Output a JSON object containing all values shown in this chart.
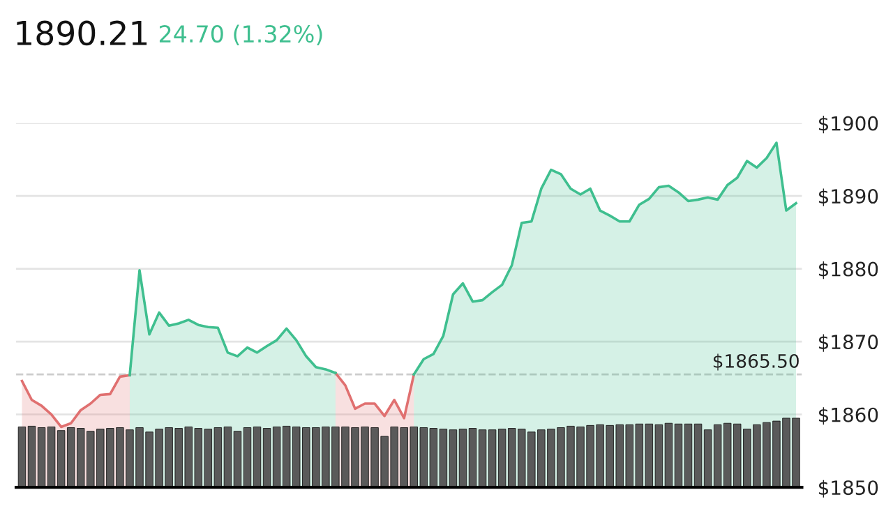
{
  "chart_data": {
    "type": "area",
    "title": "1890.21",
    "subtitle": "24.70 (1.32%)",
    "categories": [
      null,
      null,
      null,
      null,
      null,
      null,
      null,
      null,
      null,
      null,
      null,
      null,
      null,
      null,
      null,
      null,
      null,
      null,
      null,
      null,
      null,
      null,
      null,
      null,
      null,
      null,
      null,
      null,
      null,
      null,
      null,
      null,
      null,
      null,
      null,
      null,
      null,
      null,
      null,
      null,
      null,
      null,
      null,
      null,
      null,
      null,
      null,
      null,
      null,
      null,
      null,
      null,
      null,
      null,
      null,
      null,
      null,
      null,
      null,
      null,
      null,
      null,
      null,
      null,
      null,
      null,
      null,
      null,
      null,
      null,
      null,
      null,
      null,
      null,
      null,
      null,
      null,
      null,
      null,
      null
    ],
    "series": [
      {
        "type": "bar",
        "color": "#5a5a5a",
        "values": [
          1858.3,
          1858.4,
          1858.2,
          1858.3,
          1857.8,
          1858.2,
          1858.1,
          1857.7,
          1858.0,
          1858.1,
          1858.2,
          1857.9,
          1858.2,
          1857.6,
          1858.0,
          1858.2,
          1858.1,
          1858.3,
          1858.1,
          1858.0,
          1858.2,
          1858.3,
          1857.7,
          1858.2,
          1858.3,
          1858.1,
          1858.3,
          1858.4,
          1858.3,
          1858.2,
          1858.2,
          1858.3,
          1858.3,
          1858.3,
          1858.2,
          1858.3,
          1858.2,
          1857.0,
          1858.3,
          1858.2,
          1858.3,
          1858.2,
          1858.1,
          1858.0,
          1857.9,
          1858.0,
          1858.1,
          1857.9,
          1857.9,
          1858.0,
          1858.1,
          1858.0,
          1857.6,
          1857.9,
          1858.0,
          1858.2,
          1858.4,
          1858.3,
          1858.5,
          1858.6,
          1858.5,
          1858.6,
          1858.6,
          1858.7,
          1858.7,
          1858.6,
          1858.8,
          1858.7,
          1858.7,
          1858.7,
          1857.9,
          1858.6,
          1858.8,
          1858.7,
          1858.0,
          1858.6,
          1858.9,
          1859.1,
          1859.5,
          1859.5
        ]
      },
      {
        "color": "#e07070",
        "values": [
          1864.6,
          1862.0,
          1861.2,
          1860.0,
          1858.3,
          1858.8,
          1860.6,
          1861.5,
          1862.7,
          1862.8,
          1865.2,
          1865.4,
          null,
          null,
          null,
          null,
          null,
          null,
          null,
          null,
          null,
          null,
          null,
          null,
          null,
          null,
          null,
          null,
          null,
          null,
          null,
          null,
          1865.7,
          1864.0,
          1860.8,
          1861.5,
          1861.5,
          1859.8,
          1862.0,
          1859.5,
          1865.5,
          null,
          null,
          null,
          null,
          null,
          null,
          null,
          null,
          null,
          null,
          null,
          null,
          null,
          null,
          null,
          null,
          null,
          null,
          null,
          null,
          null,
          null,
          null,
          null,
          null,
          null,
          null,
          null,
          null,
          null,
          null,
          null,
          null,
          null,
          null,
          null,
          null,
          null,
          null
        ]
      },
      {
        "color": "#3fbf8f",
        "values": [
          null,
          null,
          null,
          null,
          null,
          null,
          null,
          null,
          null,
          null,
          null,
          1865.4,
          1879.8,
          1871.0,
          1874.0,
          1872.2,
          1872.5,
          1873.0,
          1872.3,
          1872.0,
          1871.9,
          1868.5,
          1868.0,
          1869.2,
          1868.5,
          1869.4,
          1870.2,
          1871.8,
          1870.2,
          1868.0,
          1866.5,
          1866.2,
          1865.7,
          null,
          null,
          null,
          null,
          null,
          null,
          null,
          1865.5,
          1867.6,
          1868.3,
          1870.8,
          1876.5,
          1878.0,
          1875.5,
          1875.7,
          1876.8,
          1877.8,
          1880.5,
          1886.3,
          1886.5,
          1891.0,
          1893.6,
          1893.0,
          1891.0,
          1890.2,
          1891.0,
          1888.0,
          1887.3,
          1886.5,
          1886.5,
          1888.8,
          1889.6,
          1891.2,
          1891.4,
          1890.5,
          1889.3,
          1889.5,
          1889.8,
          1889.5,
          1891.5,
          1892.5,
          1894.8,
          1893.9,
          1895.2,
          1897.3,
          1888.0,
          1889.0
        ]
      }
    ],
    "ylim": [
      1850,
      1900
    ],
    "yticks": [
      {
        "value": 1850,
        "label": "$1850"
      },
      {
        "value": 1860,
        "label": "$1860"
      },
      {
        "value": 1870,
        "label": "$1870"
      },
      {
        "value": 1880,
        "label": "$1880"
      },
      {
        "value": 1890,
        "label": "$1890"
      },
      {
        "value": 1900,
        "label": "$1900"
      }
    ],
    "ref_lines": [
      {
        "axis": "y",
        "value": 1865.5,
        "label": "$1865.50",
        "color": "#cccccc",
        "line_style": "dashed"
      }
    ],
    "grid": "y",
    "tick_labels": "y"
  }
}
